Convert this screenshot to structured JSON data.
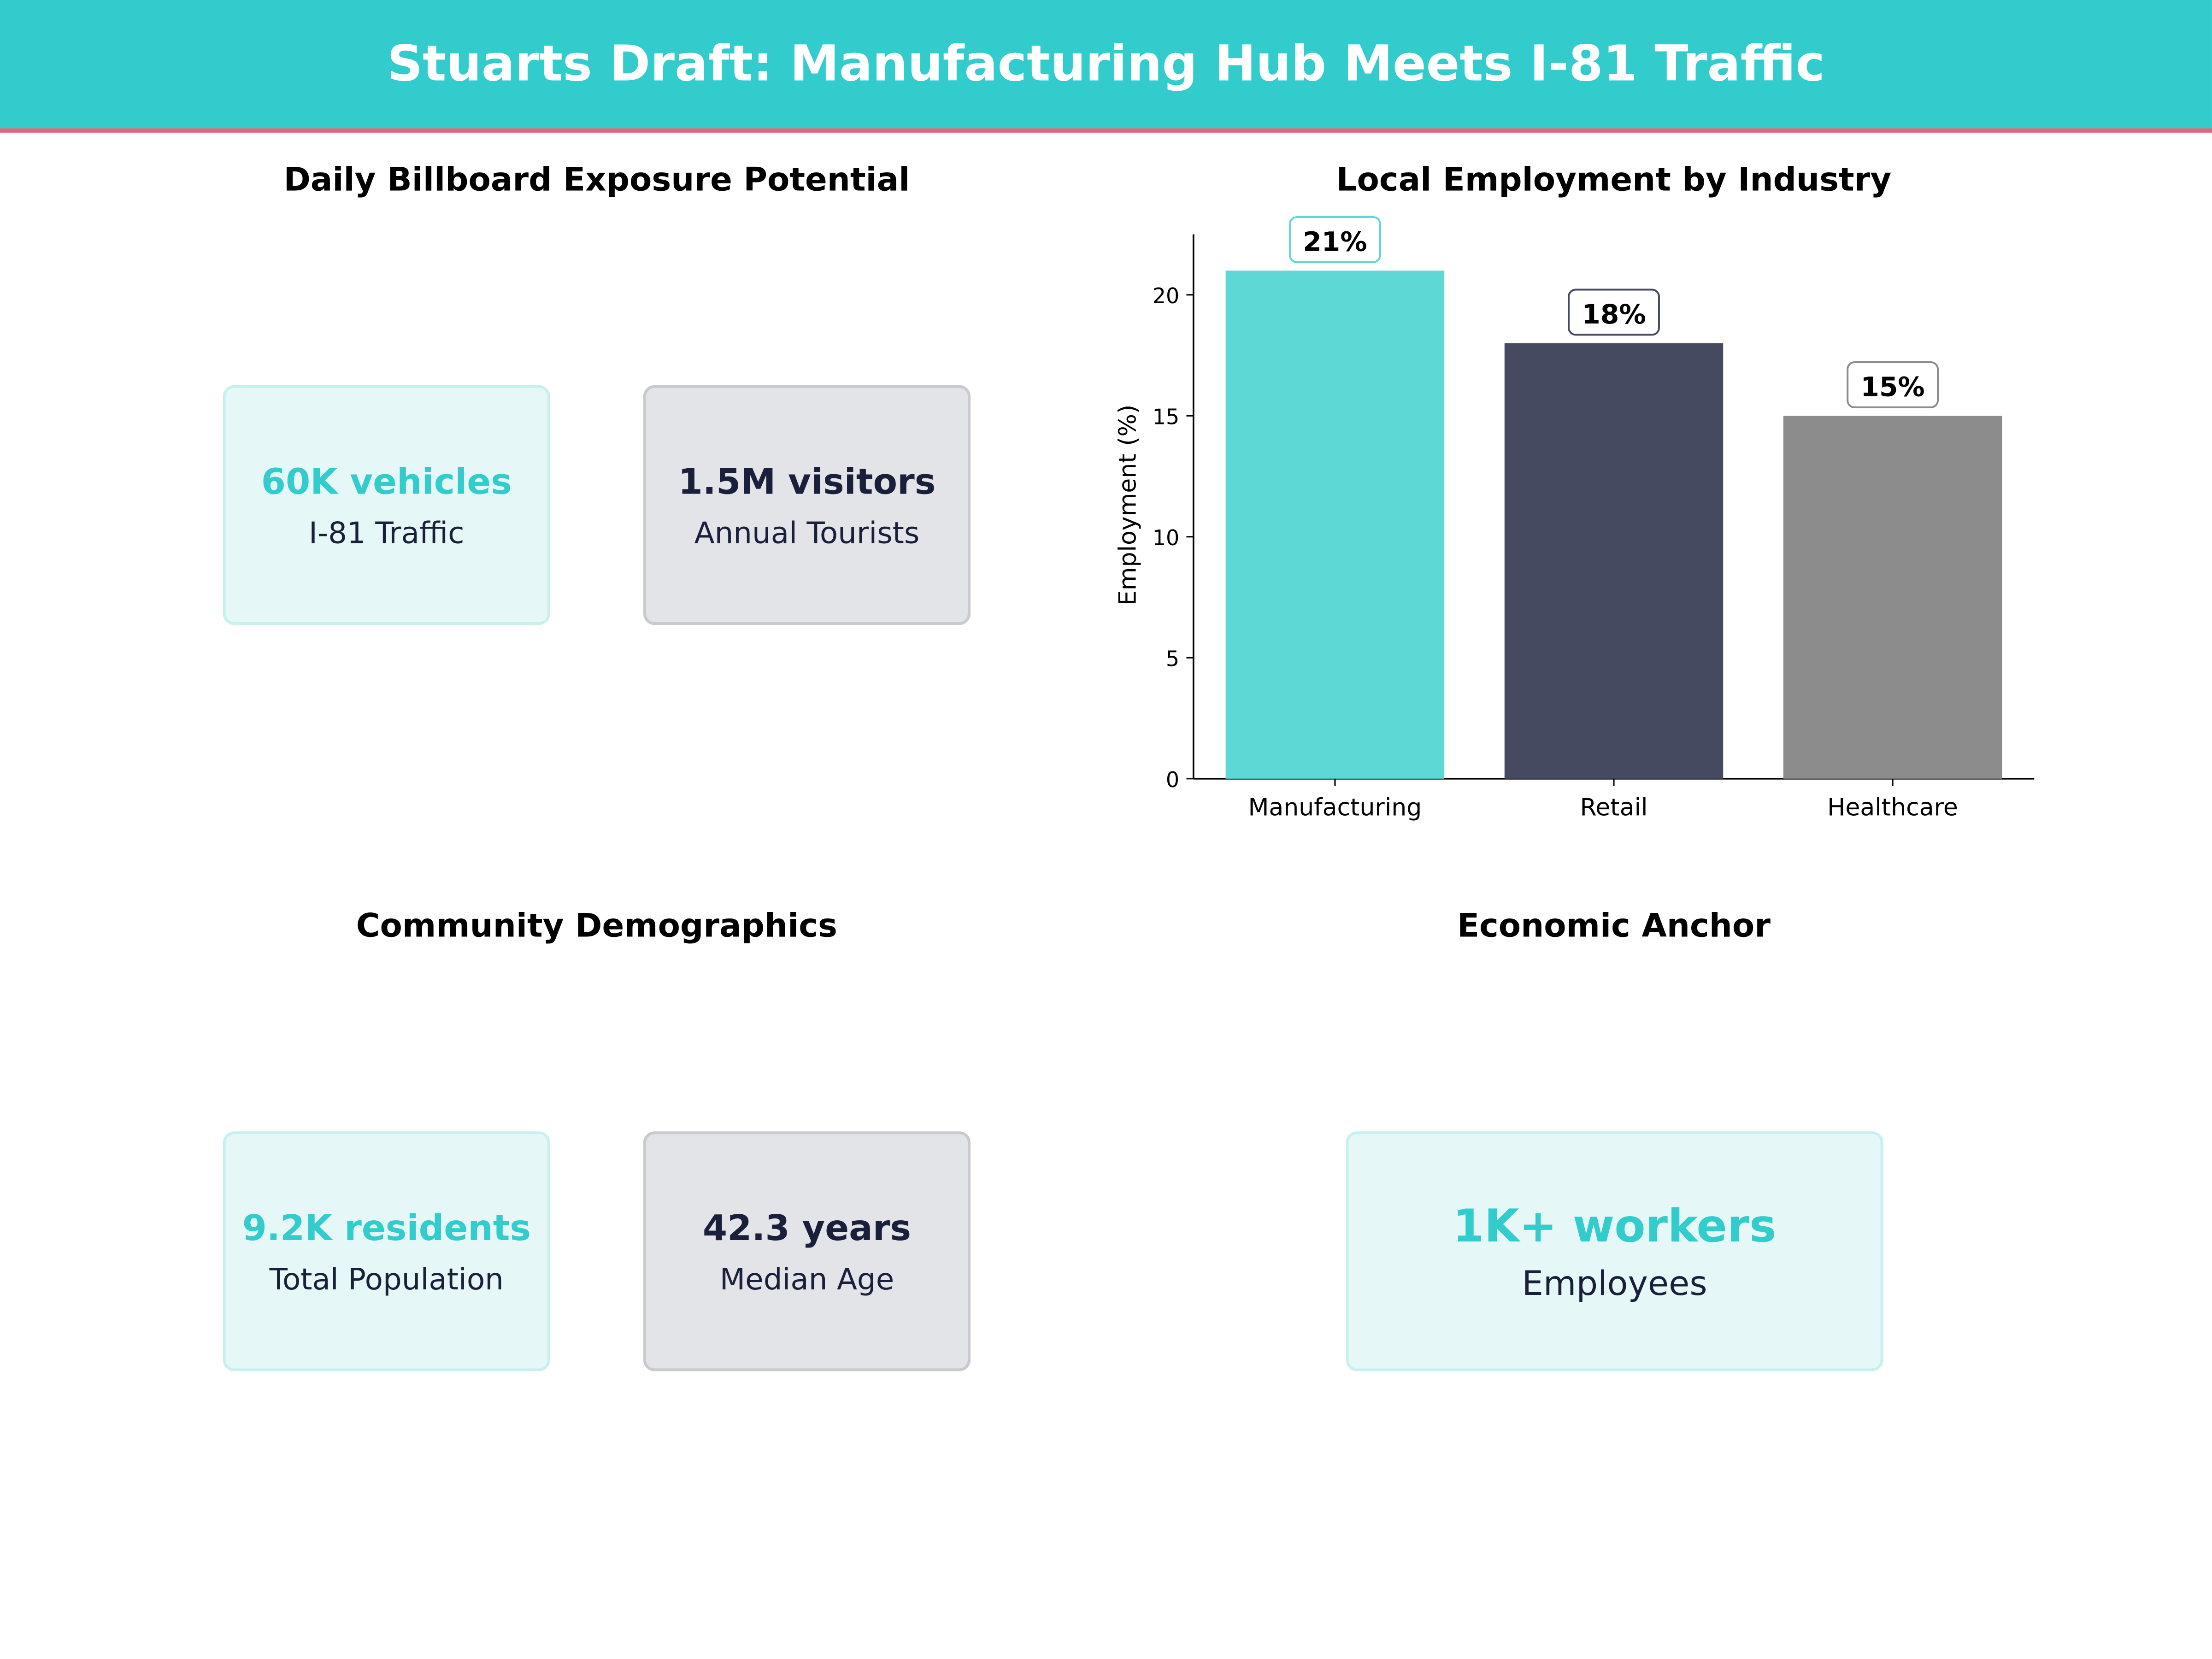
{
  "header": {
    "title": "Stuarts Draft: Manufacturing Hub Meets I-81 Traffic",
    "bg_color": "#33cccc",
    "border_color": "#ef6079"
  },
  "panels": {
    "exposure": {
      "title": "Daily Billboard Exposure Potential",
      "cards": [
        {
          "value": "60K vehicles",
          "label": "I-81 Traffic"
        },
        {
          "value": "1.5M visitors",
          "label": "Annual Tourists"
        }
      ]
    },
    "demographics": {
      "title": "Community Demographics",
      "cards": [
        {
          "value": "9.2K residents",
          "label": "Total Population"
        },
        {
          "value": "42.3 years",
          "label": "Median Age"
        }
      ]
    },
    "anchor": {
      "title": "Economic Anchor",
      "cards": [
        {
          "value": "1K+ workers",
          "label": "Employees"
        }
      ]
    }
  },
  "chart_data": {
    "type": "bar",
    "title": "Local Employment by Industry",
    "ylabel": "Employment (%)",
    "xlabel": "",
    "categories": [
      "Manufacturing",
      "Retail",
      "Healthcare"
    ],
    "values": [
      21,
      18,
      15
    ],
    "data_labels": [
      "21%",
      "18%",
      "15%"
    ],
    "colors": [
      "#5dd8d5",
      "#454a60",
      "#8c8c8c"
    ],
    "label_border_colors": [
      "#5dd8d5",
      "#454a60",
      "#8c8c8c"
    ],
    "ylim": [
      0,
      22.5
    ],
    "yticks": [
      0,
      5,
      10,
      15,
      20
    ],
    "grid": false
  }
}
